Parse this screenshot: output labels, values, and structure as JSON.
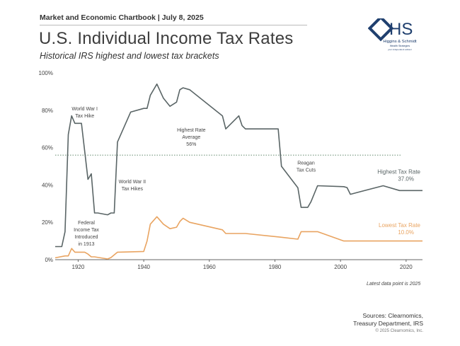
{
  "header": {
    "label": "Market and Economic Chartbook | July 8, 2025",
    "title": "U.S. Individual Income Tax Rates",
    "subtitle": "Historical IRS highest and lowest tax brackets"
  },
  "logo": {
    "mark": "HS",
    "line1": "Higgins & Schmidt",
    "line2": "Wealth Strategies",
    "line3": "your independent advisor"
  },
  "footer": {
    "latest_note": "Latest data point is 2025",
    "sources_line1": "Sources: Clearnomics,",
    "sources_line2": "Treasury Department, IRS",
    "copyright": "© 2025 Clearnomics, Inc."
  },
  "colors": {
    "highest": "#5a6566",
    "lowest": "#e9a461",
    "average_line": "#4e7a5a",
    "axis": "#666666",
    "logo": "#1f3f6e"
  },
  "chart_data": {
    "type": "line",
    "xlim": [
      1913,
      2025
    ],
    "ylim": [
      0,
      100
    ],
    "x_ticks": [
      1920,
      1940,
      1960,
      1980,
      2000,
      2020
    ],
    "y_ticks": [
      "0%",
      "20%",
      "40%",
      "60%",
      "80%",
      "100%"
    ],
    "y_tick_values": [
      0,
      20,
      40,
      60,
      80,
      100
    ],
    "grid": false,
    "average_line": {
      "value": 56
    },
    "series": [
      {
        "name": "Highest Tax Rate",
        "label": "Highest Tax Rate",
        "value_label": "37.0%",
        "x": [
          1913,
          1915,
          1916,
          1917,
          1918,
          1919,
          1921,
          1922,
          1923,
          1924,
          1925,
          1926,
          1929,
          1930,
          1931,
          1932,
          1936,
          1940,
          1941,
          1942,
          1944,
          1946,
          1948,
          1950,
          1951,
          1952,
          1954,
          1964,
          1965,
          1968,
          1969,
          1970,
          1971,
          1981,
          1982,
          1987,
          1988,
          1990,
          1991,
          1993,
          2001,
          2002,
          2003,
          2013,
          2018,
          2025
        ],
        "values": [
          7,
          7,
          15,
          67,
          77,
          73,
          73,
          58,
          43,
          46,
          25,
          25,
          24,
          25,
          25,
          63,
          79,
          81,
          81,
          88,
          94,
          86.45,
          82.13,
          84.36,
          91,
          92,
          91,
          77,
          70,
          75.25,
          77,
          71.75,
          70,
          70,
          50,
          38.5,
          28,
          28,
          31,
          39.6,
          39.1,
          38.6,
          35,
          39.6,
          37,
          37
        ]
      },
      {
        "name": "Lowest Tax Rate",
        "label": "Lowest Tax Rate",
        "value_label": "10.0%",
        "x": [
          1913,
          1916,
          1917,
          1918,
          1919,
          1921,
          1922,
          1923,
          1924,
          1925,
          1929,
          1930,
          1932,
          1940,
          1941,
          1942,
          1944,
          1946,
          1948,
          1950,
          1951,
          1952,
          1954,
          1964,
          1965,
          1971,
          1982,
          1987,
          1988,
          1993,
          2001,
          2025
        ],
        "values": [
          1,
          2,
          2,
          6,
          4,
          4,
          4,
          3,
          1.5,
          1.5,
          0.38,
          1.13,
          4,
          4.4,
          10,
          19,
          23,
          19,
          16.6,
          17.4,
          20.4,
          22.2,
          20,
          16,
          14,
          14,
          12,
          11,
          15,
          15,
          10,
          10
        ]
      }
    ],
    "annotations": [
      {
        "text": [
          "World War I",
          "Tax Hike"
        ],
        "x": 1922,
        "y": 80
      },
      {
        "text": [
          "World War II",
          "Tax Hikes"
        ],
        "x": 1936.5,
        "y": 41
      },
      {
        "text": [
          "Federal",
          "Income Tax",
          "Introduced",
          "in 1913"
        ],
        "x": 1922.5,
        "y": 19
      },
      {
        "text": [
          "Highest Rate",
          "Average",
          "56%"
        ],
        "x": 1954.5,
        "y": 68.5
      },
      {
        "text": [
          "Reagan",
          "Tax Cuts"
        ],
        "x": 1989.5,
        "y": 51
      }
    ]
  }
}
